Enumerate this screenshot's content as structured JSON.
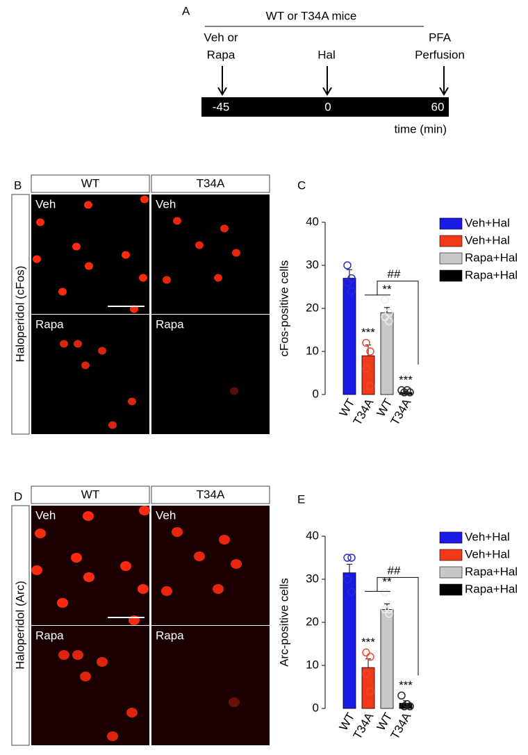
{
  "timeline": {
    "letter": "A",
    "group": "WT or T34A mice",
    "events": [
      [
        "Veh or",
        "Rapa"
      ],
      [
        "Hal"
      ],
      [
        "PFA",
        "Perfusion"
      ]
    ],
    "ticks": [
      "-45",
      "0",
      "60"
    ],
    "axis_label": "time (min)"
  },
  "micrographs": [
    {
      "letter": "B",
      "columns": [
        "WT",
        "T34A"
      ],
      "side_label": "Haloperidol (cFos)",
      "row_labels": [
        [
          "Veh",
          "Veh"
        ],
        [
          "Rapa",
          "Rapa"
        ]
      ]
    },
    {
      "letter": "D",
      "columns": [
        "WT",
        "T34A"
      ],
      "side_label": "Haloperidol (Arc)",
      "row_labels": [
        [
          "Veh",
          "Veh"
        ],
        [
          "Rapa",
          "Rapa"
        ]
      ]
    }
  ],
  "chart_data": [
    {
      "type": "bar",
      "letter": "C",
      "y_label": "cFos-positive cells",
      "categories": [
        "WT",
        "T34A",
        "WT",
        "T34A"
      ],
      "values": [
        27,
        9,
        19,
        0.5
      ],
      "errors": [
        2,
        2.5,
        1.2,
        0.3
      ],
      "points": [
        [
          30,
          27,
          26,
          24
        ],
        [
          12,
          10,
          6,
          2
        ],
        [
          22,
          19,
          18,
          17
        ],
        [
          1,
          1,
          0.5,
          0.5
        ]
      ],
      "significance": [
        null,
        "***",
        "**",
        "***"
      ],
      "comparison_label": "##",
      "legend": [
        {
          "name": "Veh+Hal",
          "color": "#1a1ae6"
        },
        {
          "name": "Veh+Hal",
          "color": "#f03a1a"
        },
        {
          "name": "Rapa+Hal",
          "color": "#c8c8c8"
        },
        {
          "name": "Rapa+Hal",
          "color": "#000000"
        }
      ],
      "ylim": [
        0,
        40
      ],
      "yticks": [
        0,
        10,
        20,
        30,
        40
      ]
    },
    {
      "type": "bar",
      "letter": "E",
      "y_label": "Arc-positive cells",
      "categories": [
        "WT",
        "T34A",
        "WT",
        "T34A"
      ],
      "values": [
        31.5,
        9.5,
        23,
        1.2
      ],
      "errors": [
        2,
        2,
        1.3,
        0.6
      ],
      "points": [
        [
          35,
          35,
          30,
          27
        ],
        [
          13,
          12,
          8,
          4
        ],
        [
          27,
          23,
          23,
          22
        ],
        [
          3,
          1,
          0.5,
          0.5
        ]
      ],
      "significance": [
        null,
        "***",
        "**",
        "***"
      ],
      "comparison_label": "##",
      "legend": [
        {
          "name": "Veh+Hal",
          "color": "#1a1ae6"
        },
        {
          "name": "Veh+Hal",
          "color": "#f03a1a"
        },
        {
          "name": "Rapa+Hal",
          "color": "#c8c8c8"
        },
        {
          "name": "Rapa+Hal",
          "color": "#000000"
        }
      ],
      "ylim": [
        0,
        40
      ],
      "yticks": [
        0,
        10,
        20,
        30,
        40
      ]
    }
  ]
}
